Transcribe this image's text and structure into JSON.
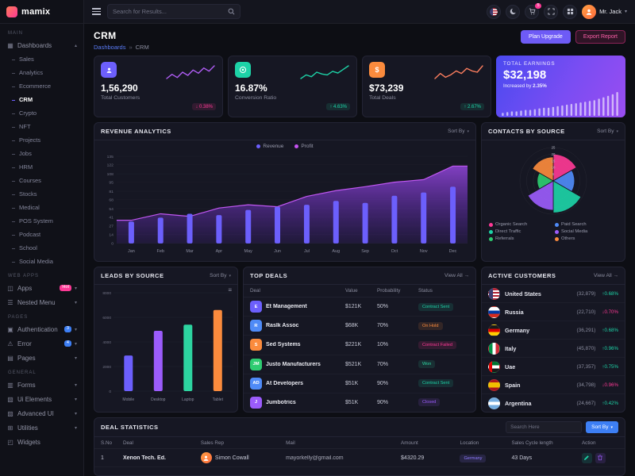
{
  "app": {
    "logo_text": "mamix"
  },
  "header": {
    "search_placeholder": "Search for Results...",
    "cart_badge": "5",
    "user": {
      "name": "Mr. Jack"
    }
  },
  "sidebar": {
    "sections": [
      {
        "label": "MAIN",
        "items": [
          {
            "label": "Dashboards",
            "chevron": "up",
            "active_child": "CRM",
            "children": [
              "Sales",
              "Analytics",
              "Ecommerce",
              "CRM",
              "Crypto",
              "NFT",
              "Projects",
              "Jobs",
              "HRM",
              "Courses",
              "Stocks",
              "Medical",
              "POS System",
              "Podcast",
              "School",
              "Social Media"
            ]
          }
        ]
      },
      {
        "label": "WEB APPS",
        "items": [
          {
            "label": "Apps",
            "badge": "Hot",
            "badge_color": "#fd3995",
            "chevron": "down"
          },
          {
            "label": "Nested Menu",
            "chevron": "down"
          }
        ]
      },
      {
        "label": "PAGES",
        "items": [
          {
            "label": "Authentication",
            "badge": "3",
            "badge_color": "#3d7ff5",
            "chevron": "down"
          },
          {
            "label": "Error",
            "badge": "4",
            "badge_color": "#3d7ff5",
            "chevron": "down"
          },
          {
            "label": "Pages",
            "chevron": "down"
          }
        ]
      },
      {
        "label": "GENERAL",
        "items": [
          {
            "label": "Forms",
            "chevron": "down"
          },
          {
            "label": "Ui Elements",
            "chevron": "down"
          },
          {
            "label": "Advanced UI",
            "chevron": "down"
          },
          {
            "label": "Utilities",
            "chevron": "down"
          },
          {
            "label": "Widgets"
          }
        ]
      }
    ]
  },
  "page": {
    "title": "CRM",
    "breadcrumb": [
      "Dashboards",
      "CRM"
    ],
    "actions": [
      {
        "label": "Plan Upgrade"
      },
      {
        "label": "Export Report"
      }
    ]
  },
  "stat_cards": [
    {
      "label": "Total Customers",
      "value": "1,56,290",
      "trend": "0.38%",
      "dir": "down",
      "icon": "users-icon",
      "glyph": "person",
      "icon_color": "#6c5ffc",
      "spark_color": "#b05df5",
      "spark": [
        10,
        14,
        11,
        16,
        13,
        18,
        15,
        20,
        17,
        22
      ]
    },
    {
      "label": "Conversion Ratio",
      "value": "16.87%",
      "trend": "4.63%",
      "dir": "up",
      "icon": "target-icon",
      "glyph": "target",
      "icon_color": "#1dd3a7",
      "spark_color": "#1dd3a7",
      "spark": [
        8,
        12,
        10,
        15,
        13,
        12,
        16,
        14,
        18,
        22
      ]
    },
    {
      "label": "Total Deals",
      "value": "$73,239",
      "trend": "2.67%",
      "dir": "up",
      "icon": "dollar-icon",
      "glyph": "dollar",
      "icon_color": "#fb8b3d",
      "spark_color": "#fd7e5f",
      "spark": [
        9,
        13,
        10,
        12,
        15,
        13,
        17,
        15,
        14,
        19
      ]
    }
  ],
  "earnings": {
    "title": "TOTAL EARNINGS",
    "value": "$32,198",
    "subtitle": "Increased by",
    "percent": "2.35%",
    "bars": [
      4,
      5,
      6,
      6,
      7,
      8,
      8,
      9,
      10,
      11,
      11,
      12,
      13,
      14,
      15,
      16,
      17,
      18,
      19,
      20,
      21,
      23,
      25,
      27,
      29,
      32
    ]
  },
  "revenue_analytics": {
    "title": "REVENUE ANALYTICS",
    "sort_label": "Sort By",
    "type": "bar+area",
    "legend": [
      {
        "label": "Revenue",
        "color": "#6c5ffc"
      },
      {
        "label": "Profit",
        "color": "#c553f0"
      }
    ],
    "months": [
      "Jan",
      "Feb",
      "Mar",
      "Apr",
      "May",
      "Jun",
      "Jul",
      "Aug",
      "Sep",
      "Oct",
      "Nov",
      "Dec"
    ],
    "revenue_bars": [
      34,
      40,
      46,
      44,
      52,
      57,
      60,
      66,
      63,
      74,
      79,
      88
    ],
    "profit_area": [
      36,
      46,
      42,
      55,
      60,
      57,
      73,
      82,
      88,
      95,
      99,
      120
    ],
    "y_ticks": [
      0,
      14,
      27,
      41,
      54,
      68,
      81,
      95,
      108,
      122,
      135
    ]
  },
  "contacts_by_source": {
    "title": "CONTACTS BY SOURCE",
    "sort_label": "Sort By",
    "type": "polar-area",
    "ticks": [
      5,
      10,
      15,
      20,
      25
    ],
    "slices": [
      {
        "label": "Organic Search",
        "value": 20,
        "color": "#fd3995"
      },
      {
        "label": "Paid Search",
        "value": 16,
        "color": "#4f8bf7"
      },
      {
        "label": "Direct Traffic",
        "value": 24,
        "color": "#1dd3a7"
      },
      {
        "label": "Social Media",
        "value": 22,
        "color": "#9b5cfb"
      },
      {
        "label": "Referrals",
        "value": 12,
        "color": "#2ecc71"
      },
      {
        "label": "Others",
        "value": 18,
        "color": "#fb8b3d"
      }
    ]
  },
  "leads_by_source": {
    "title": "LEADS BY SOURCE",
    "sort_label": "Sort By",
    "type": "bar",
    "categories": [
      "Mobile",
      "Desktop",
      "Laptop",
      "Tablet"
    ],
    "values": [
      2900,
      4900,
      5400,
      6600
    ],
    "colors": [
      "#6c5ffc",
      "#9b5cfb",
      "#2dd4a0",
      "#fb8b3d"
    ],
    "y_ticks": [
      0,
      2000,
      4000,
      6000,
      8000
    ],
    "ymax": 8000
  },
  "top_deals": {
    "title": "TOP DEALS",
    "view_all": "View All",
    "columns": [
      "Deal",
      "Value",
      "Probability",
      "Status"
    ],
    "rows": [
      {
        "initials": "E",
        "avatar_color": "#6c5ffc",
        "name": "Et Management",
        "value": "$121K",
        "probability": "50%",
        "status": "Contract Sent",
        "status_color": "#1dd3a7"
      },
      {
        "initials": "R",
        "avatar_color": "#4f8bf7",
        "name": "Raslk Assoc",
        "value": "$68K",
        "probability": "70%",
        "status": "On Hold",
        "status_color": "#fb8b3d"
      },
      {
        "initials": "S",
        "avatar_color": "#fb8b3d",
        "name": "Sed Systems",
        "value": "$221K",
        "probability": "10%",
        "status": "Contract Failed",
        "status_color": "#fd3995"
      },
      {
        "initials": "JM",
        "avatar_color": "#2ecc71",
        "name": "Justo Manufacturers",
        "value": "$521K",
        "probability": "70%",
        "status": "Won",
        "status_color": "#2dd4a0"
      },
      {
        "initials": "AD",
        "avatar_color": "#4f8bf7",
        "name": "At Developers",
        "value": "$51K",
        "probability": "90%",
        "status": "Contract Sent",
        "status_color": "#1dd3a7"
      },
      {
        "initials": "J",
        "avatar_color": "#9b5cfb",
        "name": "Jumbotrics",
        "value": "$51K",
        "probability": "90%",
        "status": "Closed",
        "status_color": "#9b5cfb"
      }
    ]
  },
  "active_customers": {
    "title": "ACTIVE CUSTOMERS",
    "view_all": "View All",
    "rows": [
      {
        "country": "United States",
        "flag": "us",
        "value": "(32,879)",
        "change": "0.68%",
        "dir": "up"
      },
      {
        "country": "Russia",
        "flag": "ru",
        "value": "(22,710)",
        "change": "0.70%",
        "dir": "down"
      },
      {
        "country": "Germany",
        "flag": "de",
        "value": "(36,291)",
        "change": "0.68%",
        "dir": "up"
      },
      {
        "country": "Italy",
        "flag": "it",
        "value": "(45,870)",
        "change": "0.96%",
        "dir": "up"
      },
      {
        "country": "Uae",
        "flag": "ae",
        "value": "(37,357)",
        "change": "0.75%",
        "dir": "up"
      },
      {
        "country": "Spain",
        "flag": "es",
        "value": "(34,798)",
        "change": "0.96%",
        "dir": "down"
      },
      {
        "country": "Argentina",
        "flag": "ar",
        "value": "(24,667)",
        "change": "0.42%",
        "dir": "up"
      }
    ]
  },
  "deal_statistics": {
    "title": "DEAL STATISTICS",
    "search_placeholder": "Search Here",
    "sort_button": "Sort By",
    "columns": [
      "S.No",
      "Deal",
      "Sales Rep",
      "Mail",
      "Amount",
      "Location",
      "Sales Cycle length",
      "Action"
    ],
    "rows": [
      {
        "sno": "1",
        "deal": "Xenon Tech. Ed.",
        "rep": "Simon Cowall",
        "mail": "mayorkelly@gmail.com",
        "amount": "$4320.29",
        "location": "Germany",
        "location_color": "#8f7bff",
        "cycle": "43 Days"
      }
    ]
  }
}
